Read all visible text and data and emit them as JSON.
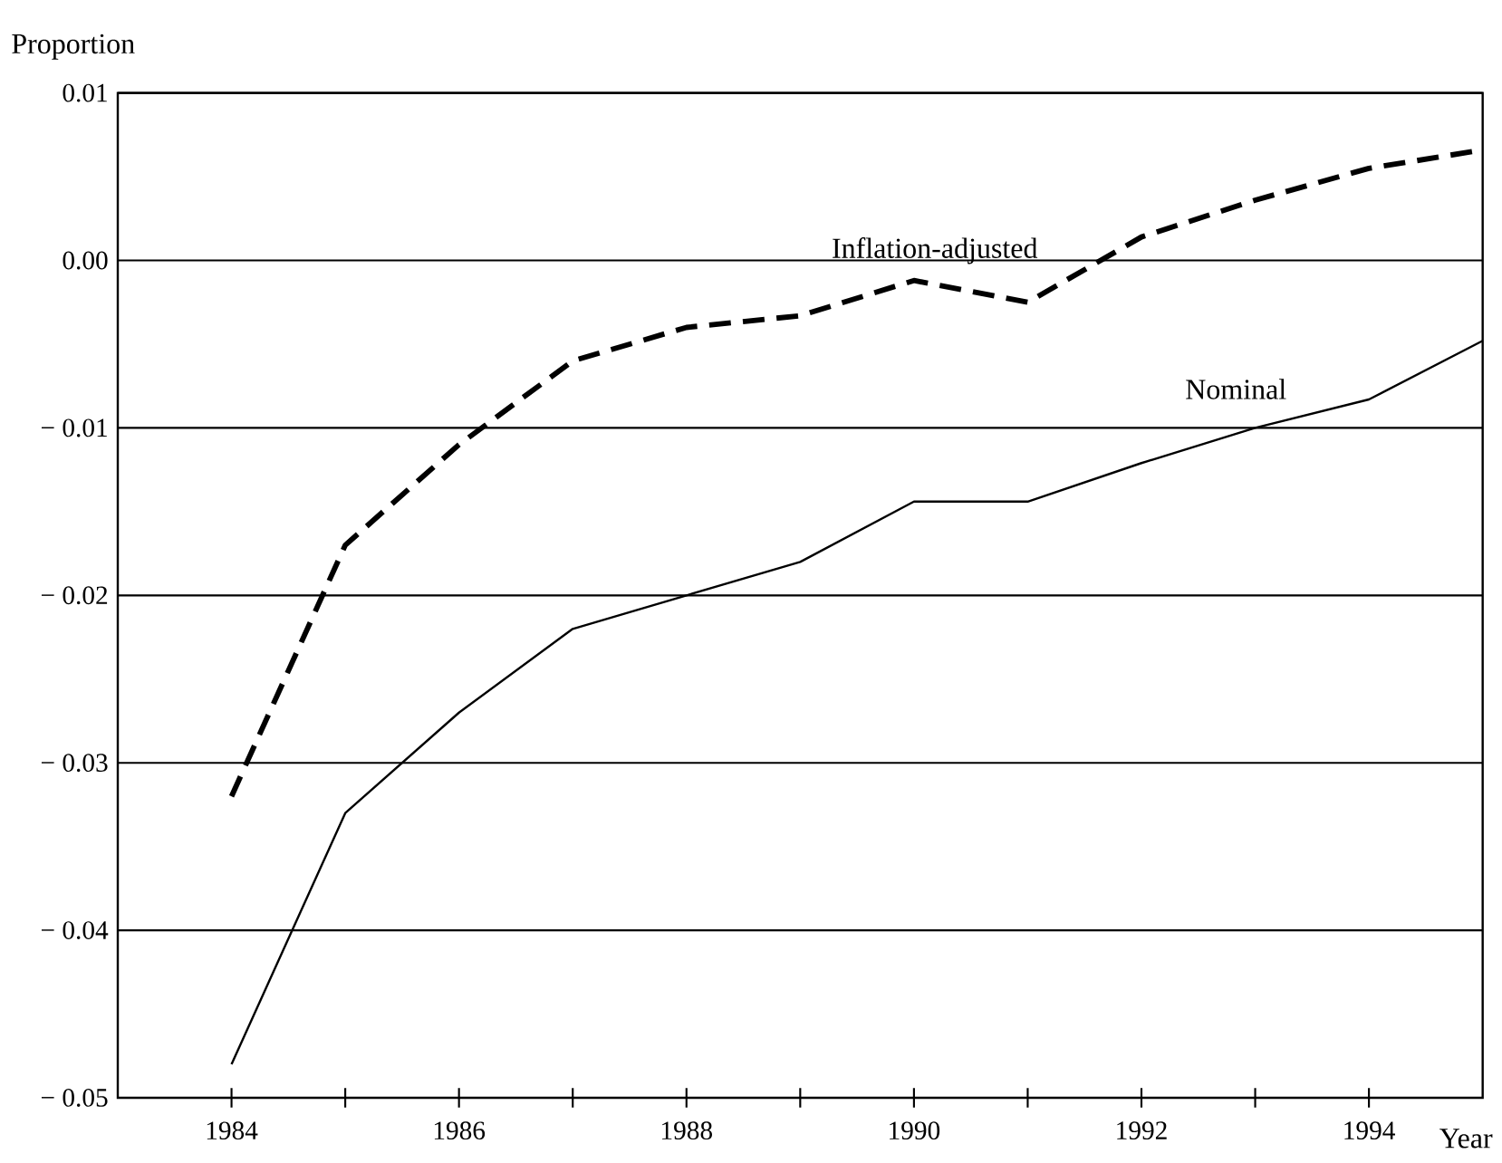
{
  "chart_data": {
    "type": "line",
    "ylabel": "Proportion",
    "xlabel": "Year",
    "x": [
      1984,
      1985,
      1986,
      1987,
      1988,
      1989,
      1990,
      1991,
      1992,
      1993,
      1994,
      1995
    ],
    "series": [
      {
        "name": "Inflation-adjusted",
        "color": "#000000",
        "line_style": "dashed",
        "values": [
          -0.032,
          -0.017,
          -0.011,
          -0.006,
          -0.004,
          -0.0033,
          -0.0012,
          -0.0025,
          0.0014,
          0.0036,
          0.0055,
          0.0066
        ]
      },
      {
        "name": "Nominal",
        "color": "#000000",
        "line_style": "solid",
        "values": [
          -0.048,
          -0.033,
          -0.027,
          -0.022,
          -0.02,
          -0.018,
          -0.0144,
          -0.0144,
          -0.0121,
          -0.01,
          -0.0083,
          -0.0048
        ]
      }
    ],
    "xlim": [
      1983,
      1995
    ],
    "ylim": [
      -0.05,
      0.01
    ],
    "xticks": [
      1984,
      {
        "value": 1985,
        "label": null
      },
      1986,
      {
        "value": 1987,
        "label": null
      },
      1988,
      {
        "value": 1989,
        "label": null
      },
      1990,
      {
        "value": 1991,
        "label": null
      },
      1992,
      {
        "value": 1993,
        "label": null
      },
      1994
    ],
    "yticks": [
      {
        "value": -0.05,
        "label": "− 0.05"
      },
      {
        "value": -0.04,
        "label": "− 0.04"
      },
      {
        "value": -0.03,
        "label": "− 0.03"
      },
      {
        "value": -0.02,
        "label": "− 0.02"
      },
      {
        "value": -0.01,
        "label": "− 0.01"
      },
      {
        "value": 0,
        "label": "0.00"
      },
      {
        "value": 0.01,
        "label": "0.01"
      }
    ],
    "grid": "y",
    "legend": false,
    "marker": "none"
  }
}
